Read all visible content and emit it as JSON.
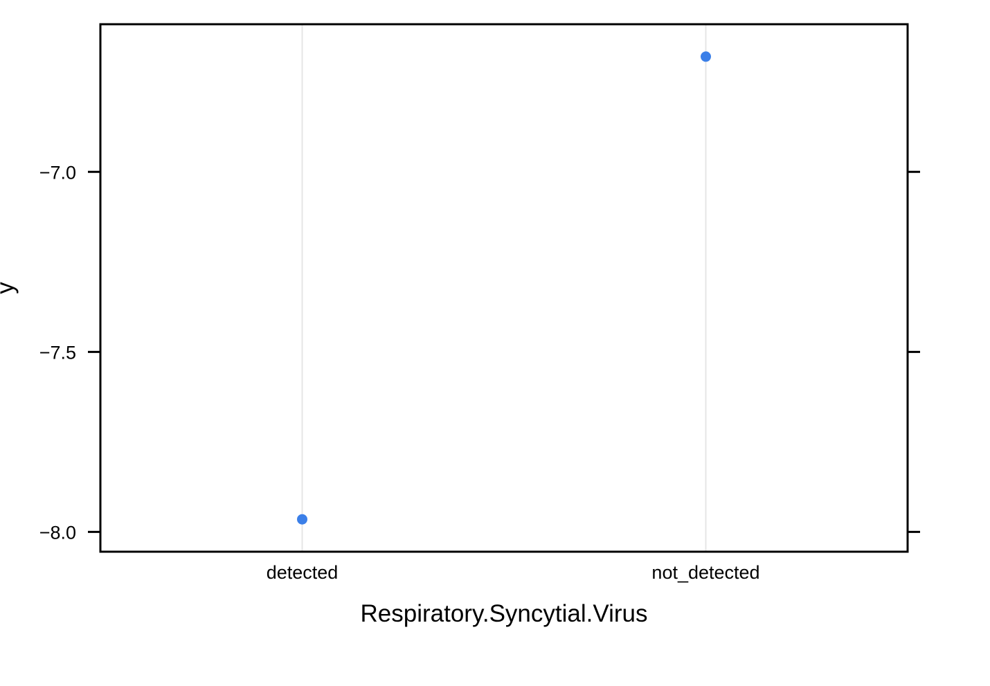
{
  "chart_data": {
    "type": "scatter",
    "title": "",
    "xlabel": "Respiratory.Syncytial.Virus",
    "ylabel": "y",
    "categories": [
      "detected",
      "not_detected"
    ],
    "series": [
      {
        "values": [
          -7.965,
          -6.68
        ]
      }
    ],
    "ylim": [
      -8.055,
      -6.59
    ],
    "yticks": [
      -7.0,
      -7.5,
      -8.0
    ],
    "ytick_labels": [
      "−7.0",
      "−7.5",
      "−8.0"
    ],
    "grid": "vertical",
    "point_color": "#3B7FE8",
    "grid_color": "#E6E6E6",
    "legend": "none"
  }
}
